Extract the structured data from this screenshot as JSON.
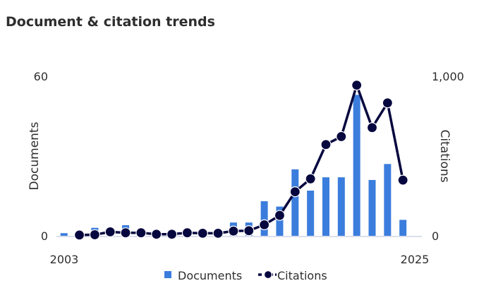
{
  "title": "Document & citation trends",
  "colors": {
    "documents": "#3b7ddd",
    "citations": "#07073f",
    "baseline": "#cfd3e6"
  },
  "chart_data": {
    "type": "bar+line",
    "title": "Document & citation trends",
    "x": [
      2003,
      2004,
      2005,
      2006,
      2007,
      2008,
      2009,
      2010,
      2011,
      2012,
      2013,
      2014,
      2015,
      2016,
      2017,
      2018,
      2019,
      2020,
      2021,
      2022,
      2023,
      2024,
      2025
    ],
    "x_tick_labels": [
      "2003",
      "2025"
    ],
    "series": [
      {
        "name": "Documents",
        "type": "bar",
        "axis": "left",
        "values": [
          1,
          0,
          3,
          0,
          4,
          0,
          0,
          0,
          0,
          0,
          0,
          5,
          5,
          13,
          11,
          25,
          17,
          22,
          22,
          53,
          21,
          27,
          6
        ]
      },
      {
        "name": "Citations",
        "type": "line",
        "axis": "right",
        "values": [
          null,
          5,
          7,
          25,
          19,
          19,
          10,
          10,
          19,
          16,
          16,
          30,
          32,
          69,
          128,
          276,
          357,
          572,
          622,
          944,
          678,
          833,
          349
        ]
      }
    ],
    "ylabel_left": "Documents",
    "ylim_left": [
      0,
      60
    ],
    "left_ticks": [
      "0",
      "60"
    ],
    "ylabel_right": "Citations",
    "ylim_right": [
      0,
      1000
    ],
    "right_ticks": [
      "0",
      "1,000"
    ],
    "legend": {
      "placement": "bottom",
      "entries": [
        "Documents",
        "Citations"
      ]
    },
    "grid": false
  }
}
